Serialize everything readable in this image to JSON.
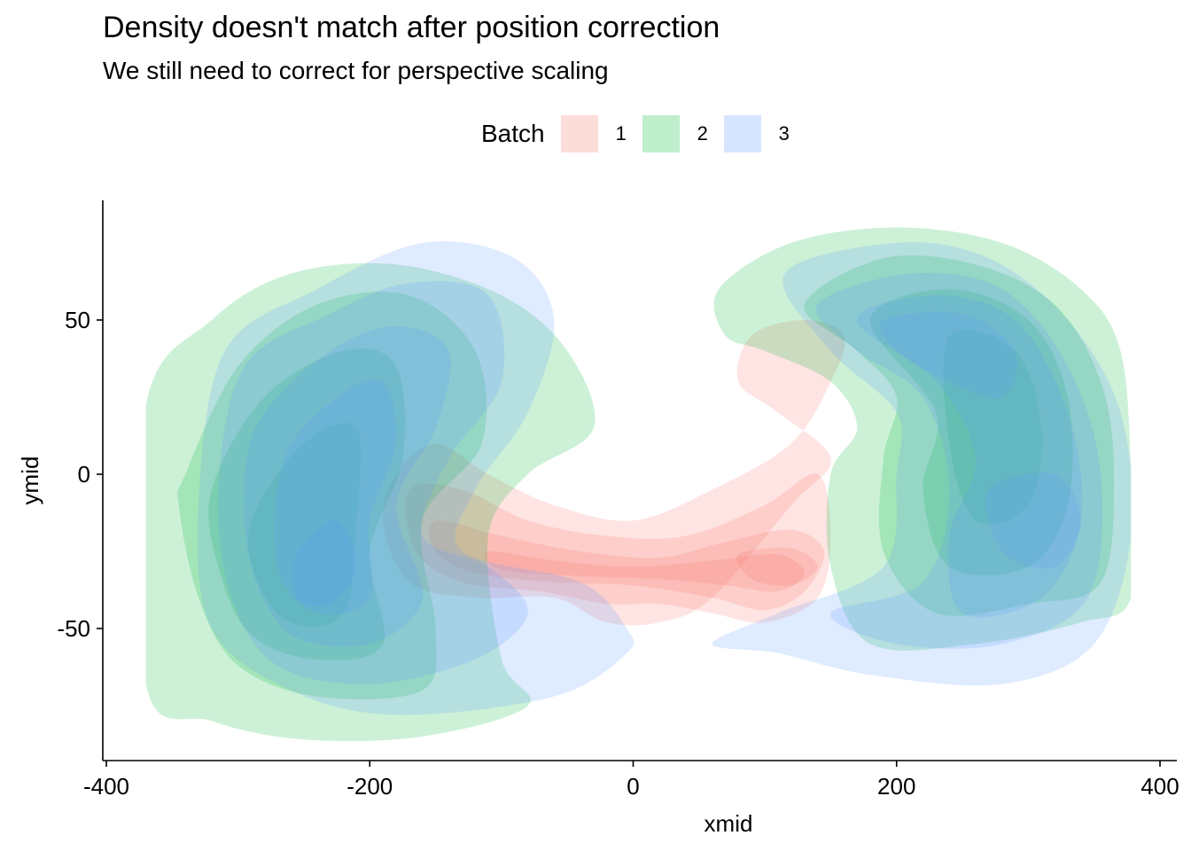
{
  "chart_data": {
    "type": "density",
    "title": "Density doesn't match after position correction",
    "subtitle": "We still need to correct for perspective scaling",
    "xlabel": "xmid",
    "ylabel": "ymid",
    "xlim": [
      -400,
      400
    ],
    "ylim": [
      -90,
      85
    ],
    "x_ticks": [
      -400,
      -200,
      0,
      200,
      400
    ],
    "y_ticks": [
      -50,
      0,
      50
    ],
    "legend": {
      "title": "Batch",
      "position": "top",
      "entries": [
        {
          "label": "1",
          "color": "#F8766D"
        },
        {
          "label": "2",
          "color": "#00BA38"
        },
        {
          "label": "3",
          "color": "#619CFF"
        }
      ]
    },
    "series": [
      {
        "name": "1",
        "color": "#F8766D",
        "levels": [
          [
            [
              -180,
              0
            ],
            [
              -150,
              10
            ],
            [
              -110,
              0
            ],
            [
              -60,
              -10
            ],
            [
              0,
              -15
            ],
            [
              60,
              -5
            ],
            [
              120,
              10
            ],
            [
              150,
              30
            ],
            [
              160,
              45
            ],
            [
              130,
              50
            ],
            [
              90,
              45
            ],
            [
              80,
              30
            ],
            [
              110,
              20
            ],
            [
              150,
              5
            ],
            [
              120,
              -10
            ],
            [
              60,
              -40
            ],
            [
              20,
              -48
            ],
            [
              -20,
              -48
            ],
            [
              -60,
              -40
            ],
            [
              -120,
              -40
            ],
            [
              -170,
              -35
            ],
            [
              -190,
              -15
            ]
          ],
          [
            [
              -170,
              -5
            ],
            [
              -130,
              -5
            ],
            [
              -80,
              -15
            ],
            [
              -20,
              -20
            ],
            [
              40,
              -20
            ],
            [
              100,
              -10
            ],
            [
              140,
              0
            ],
            [
              150,
              -20
            ],
            [
              140,
              -40
            ],
            [
              100,
              -48
            ],
            [
              60,
              -45
            ],
            [
              20,
              -42
            ],
            [
              -20,
              -42
            ],
            [
              -70,
              -38
            ],
            [
              -130,
              -35
            ],
            [
              -165,
              -25
            ]
          ],
          [
            [
              -150,
              -15
            ],
            [
              -100,
              -20
            ],
            [
              -40,
              -25
            ],
            [
              20,
              -27
            ],
            [
              70,
              -22
            ],
            [
              120,
              -18
            ],
            [
              145,
              -25
            ],
            [
              130,
              -38
            ],
            [
              100,
              -44
            ],
            [
              60,
              -40
            ],
            [
              0,
              -36
            ],
            [
              -60,
              -35
            ],
            [
              -120,
              -32
            ],
            [
              -150,
              -25
            ]
          ],
          [
            [
              -110,
              -25
            ],
            [
              -60,
              -28
            ],
            [
              0,
              -30
            ],
            [
              60,
              -28
            ],
            [
              110,
              -26
            ],
            [
              130,
              -32
            ],
            [
              110,
              -38
            ],
            [
              70,
              -36
            ],
            [
              20,
              -34
            ],
            [
              -40,
              -33
            ],
            [
              -100,
              -31
            ]
          ],
          [
            [
              80,
              -26
            ],
            [
              120,
              -24
            ],
            [
              140,
              -30
            ],
            [
              120,
              -36
            ],
            [
              90,
              -34
            ]
          ]
        ]
      },
      {
        "name": "2",
        "color": "#00BA38",
        "levels": [
          [
            [
              -370,
              22
            ],
            [
              -320,
              50
            ],
            [
              -260,
              65
            ],
            [
              -180,
              68
            ],
            [
              -100,
              58
            ],
            [
              -50,
              40
            ],
            [
              -30,
              15
            ],
            [
              -80,
              0
            ],
            [
              -110,
              -20
            ],
            [
              -100,
              -60
            ],
            [
              -80,
              -75
            ],
            [
              -160,
              -85
            ],
            [
              -250,
              -86
            ],
            [
              -320,
              -80
            ],
            [
              -370,
              -68
            ]
          ],
          [
            [
              -340,
              0
            ],
            [
              -300,
              35
            ],
            [
              -240,
              55
            ],
            [
              -170,
              58
            ],
            [
              -120,
              40
            ],
            [
              -115,
              10
            ],
            [
              -160,
              -15
            ],
            [
              -150,
              -50
            ],
            [
              -160,
              -70
            ],
            [
              -240,
              -72
            ],
            [
              -300,
              -62
            ],
            [
              -330,
              -40
            ],
            [
              -345,
              -10
            ]
          ],
          [
            [
              -320,
              -5
            ],
            [
              -280,
              25
            ],
            [
              -220,
              40
            ],
            [
              -180,
              35
            ],
            [
              -175,
              5
            ],
            [
              -200,
              -25
            ],
            [
              -190,
              -55
            ],
            [
              -240,
              -60
            ],
            [
              -290,
              -52
            ],
            [
              -315,
              -30
            ]
          ],
          [
            [
              -290,
              -15
            ],
            [
              -250,
              10
            ],
            [
              -210,
              15
            ],
            [
              -210,
              -15
            ],
            [
              -220,
              -45
            ],
            [
              -260,
              -48
            ],
            [
              -285,
              -35
            ]
          ],
          [
            [
              65,
              60
            ],
            [
              120,
              75
            ],
            [
              200,
              80
            ],
            [
              280,
              75
            ],
            [
              340,
              60
            ],
            [
              370,
              40
            ],
            [
              378,
              0
            ],
            [
              378,
              -40
            ],
            [
              340,
              -48
            ],
            [
              260,
              -55
            ],
            [
              180,
              -55
            ],
            [
              150,
              -30
            ],
            [
              150,
              0
            ],
            [
              170,
              15
            ],
            [
              150,
              30
            ],
            [
              100,
              40
            ],
            [
              70,
              45
            ]
          ],
          [
            [
              130,
              55
            ],
            [
              190,
              70
            ],
            [
              260,
              68
            ],
            [
              320,
              55
            ],
            [
              355,
              30
            ],
            [
              365,
              0
            ],
            [
              355,
              -35
            ],
            [
              300,
              -42
            ],
            [
              230,
              -45
            ],
            [
              190,
              -25
            ],
            [
              190,
              5
            ],
            [
              200,
              25
            ],
            [
              170,
              40
            ]
          ],
          [
            [
              180,
              50
            ],
            [
              240,
              60
            ],
            [
              300,
              50
            ],
            [
              330,
              25
            ],
            [
              330,
              -10
            ],
            [
              300,
              -30
            ],
            [
              240,
              -30
            ],
            [
              220,
              -5
            ],
            [
              230,
              20
            ]
          ],
          [
            [
              240,
              45
            ],
            [
              290,
              40
            ],
            [
              310,
              15
            ],
            [
              300,
              -10
            ],
            [
              260,
              -15
            ],
            [
              240,
              10
            ]
          ]
        ]
      },
      {
        "name": "3",
        "color": "#619CFF",
        "levels": [
          [
            [
              -310,
              40
            ],
            [
              -240,
              60
            ],
            [
              -160,
              75
            ],
            [
              -90,
              70
            ],
            [
              -60,
              50
            ],
            [
              -80,
              20
            ],
            [
              -120,
              -5
            ],
            [
              -130,
              -25
            ],
            [
              -40,
              -35
            ],
            [
              -5,
              -50
            ],
            [
              -5,
              -58
            ],
            [
              -60,
              -72
            ],
            [
              -180,
              -78
            ],
            [
              -260,
              -70
            ],
            [
              -320,
              -50
            ],
            [
              -330,
              -10
            ]
          ],
          [
            [
              -295,
              35
            ],
            [
              -230,
              52
            ],
            [
              -170,
              62
            ],
            [
              -110,
              58
            ],
            [
              -100,
              30
            ],
            [
              -140,
              5
            ],
            [
              -160,
              -20
            ],
            [
              -110,
              -30
            ],
            [
              -80,
              -45
            ],
            [
              -120,
              -60
            ],
            [
              -200,
              -68
            ],
            [
              -270,
              -62
            ],
            [
              -305,
              -40
            ],
            [
              -315,
              -5
            ]
          ],
          [
            [
              -280,
              20
            ],
            [
              -230,
              40
            ],
            [
              -180,
              48
            ],
            [
              -140,
              40
            ],
            [
              -150,
              15
            ],
            [
              -180,
              -10
            ],
            [
              -160,
              -40
            ],
            [
              -200,
              -55
            ],
            [
              -260,
              -52
            ],
            [
              -290,
              -30
            ],
            [
              -295,
              0
            ]
          ],
          [
            [
              -265,
              5
            ],
            [
              -225,
              25
            ],
            [
              -190,
              30
            ],
            [
              -180,
              10
            ],
            [
              -200,
              -15
            ],
            [
              -200,
              -40
            ],
            [
              -240,
              -45
            ],
            [
              -270,
              -30
            ]
          ],
          [
            [
              -255,
              -25
            ],
            [
              -225,
              -15
            ],
            [
              -210,
              -30
            ],
            [
              -230,
              -42
            ],
            [
              -255,
              -40
            ]
          ],
          [
            [
              115,
              65
            ],
            [
              200,
              75
            ],
            [
              270,
              70
            ],
            [
              330,
              50
            ],
            [
              370,
              20
            ],
            [
              378,
              -20
            ],
            [
              350,
              -55
            ],
            [
              280,
              -68
            ],
            [
              180,
              -65
            ],
            [
              110,
              -58
            ],
            [
              60,
              -55
            ],
            [
              110,
              -45
            ],
            [
              190,
              -30
            ],
            [
              200,
              0
            ],
            [
              200,
              20
            ],
            [
              150,
              40
            ]
          ],
          [
            [
              140,
              55
            ],
            [
              210,
              65
            ],
            [
              280,
              60
            ],
            [
              330,
              35
            ],
            [
              355,
              0
            ],
            [
              345,
              -40
            ],
            [
              280,
              -55
            ],
            [
              200,
              -55
            ],
            [
              150,
              -45
            ],
            [
              220,
              -35
            ],
            [
              240,
              -5
            ],
            [
              220,
              25
            ],
            [
              170,
              40
            ]
          ],
          [
            [
              170,
              50
            ],
            [
              230,
              58
            ],
            [
              290,
              50
            ],
            [
              330,
              20
            ],
            [
              340,
              -15
            ],
            [
              310,
              -40
            ],
            [
              250,
              -45
            ],
            [
              240,
              -20
            ],
            [
              260,
              5
            ],
            [
              230,
              30
            ]
          ],
          [
            [
              190,
              50
            ],
            [
              250,
              52
            ],
            [
              290,
              40
            ],
            [
              280,
              25
            ],
            [
              240,
              30
            ],
            [
              200,
              40
            ]
          ],
          [
            [
              270,
              -5
            ],
            [
              320,
              0
            ],
            [
              340,
              -15
            ],
            [
              320,
              -30
            ],
            [
              280,
              -25
            ]
          ]
        ]
      }
    ]
  }
}
